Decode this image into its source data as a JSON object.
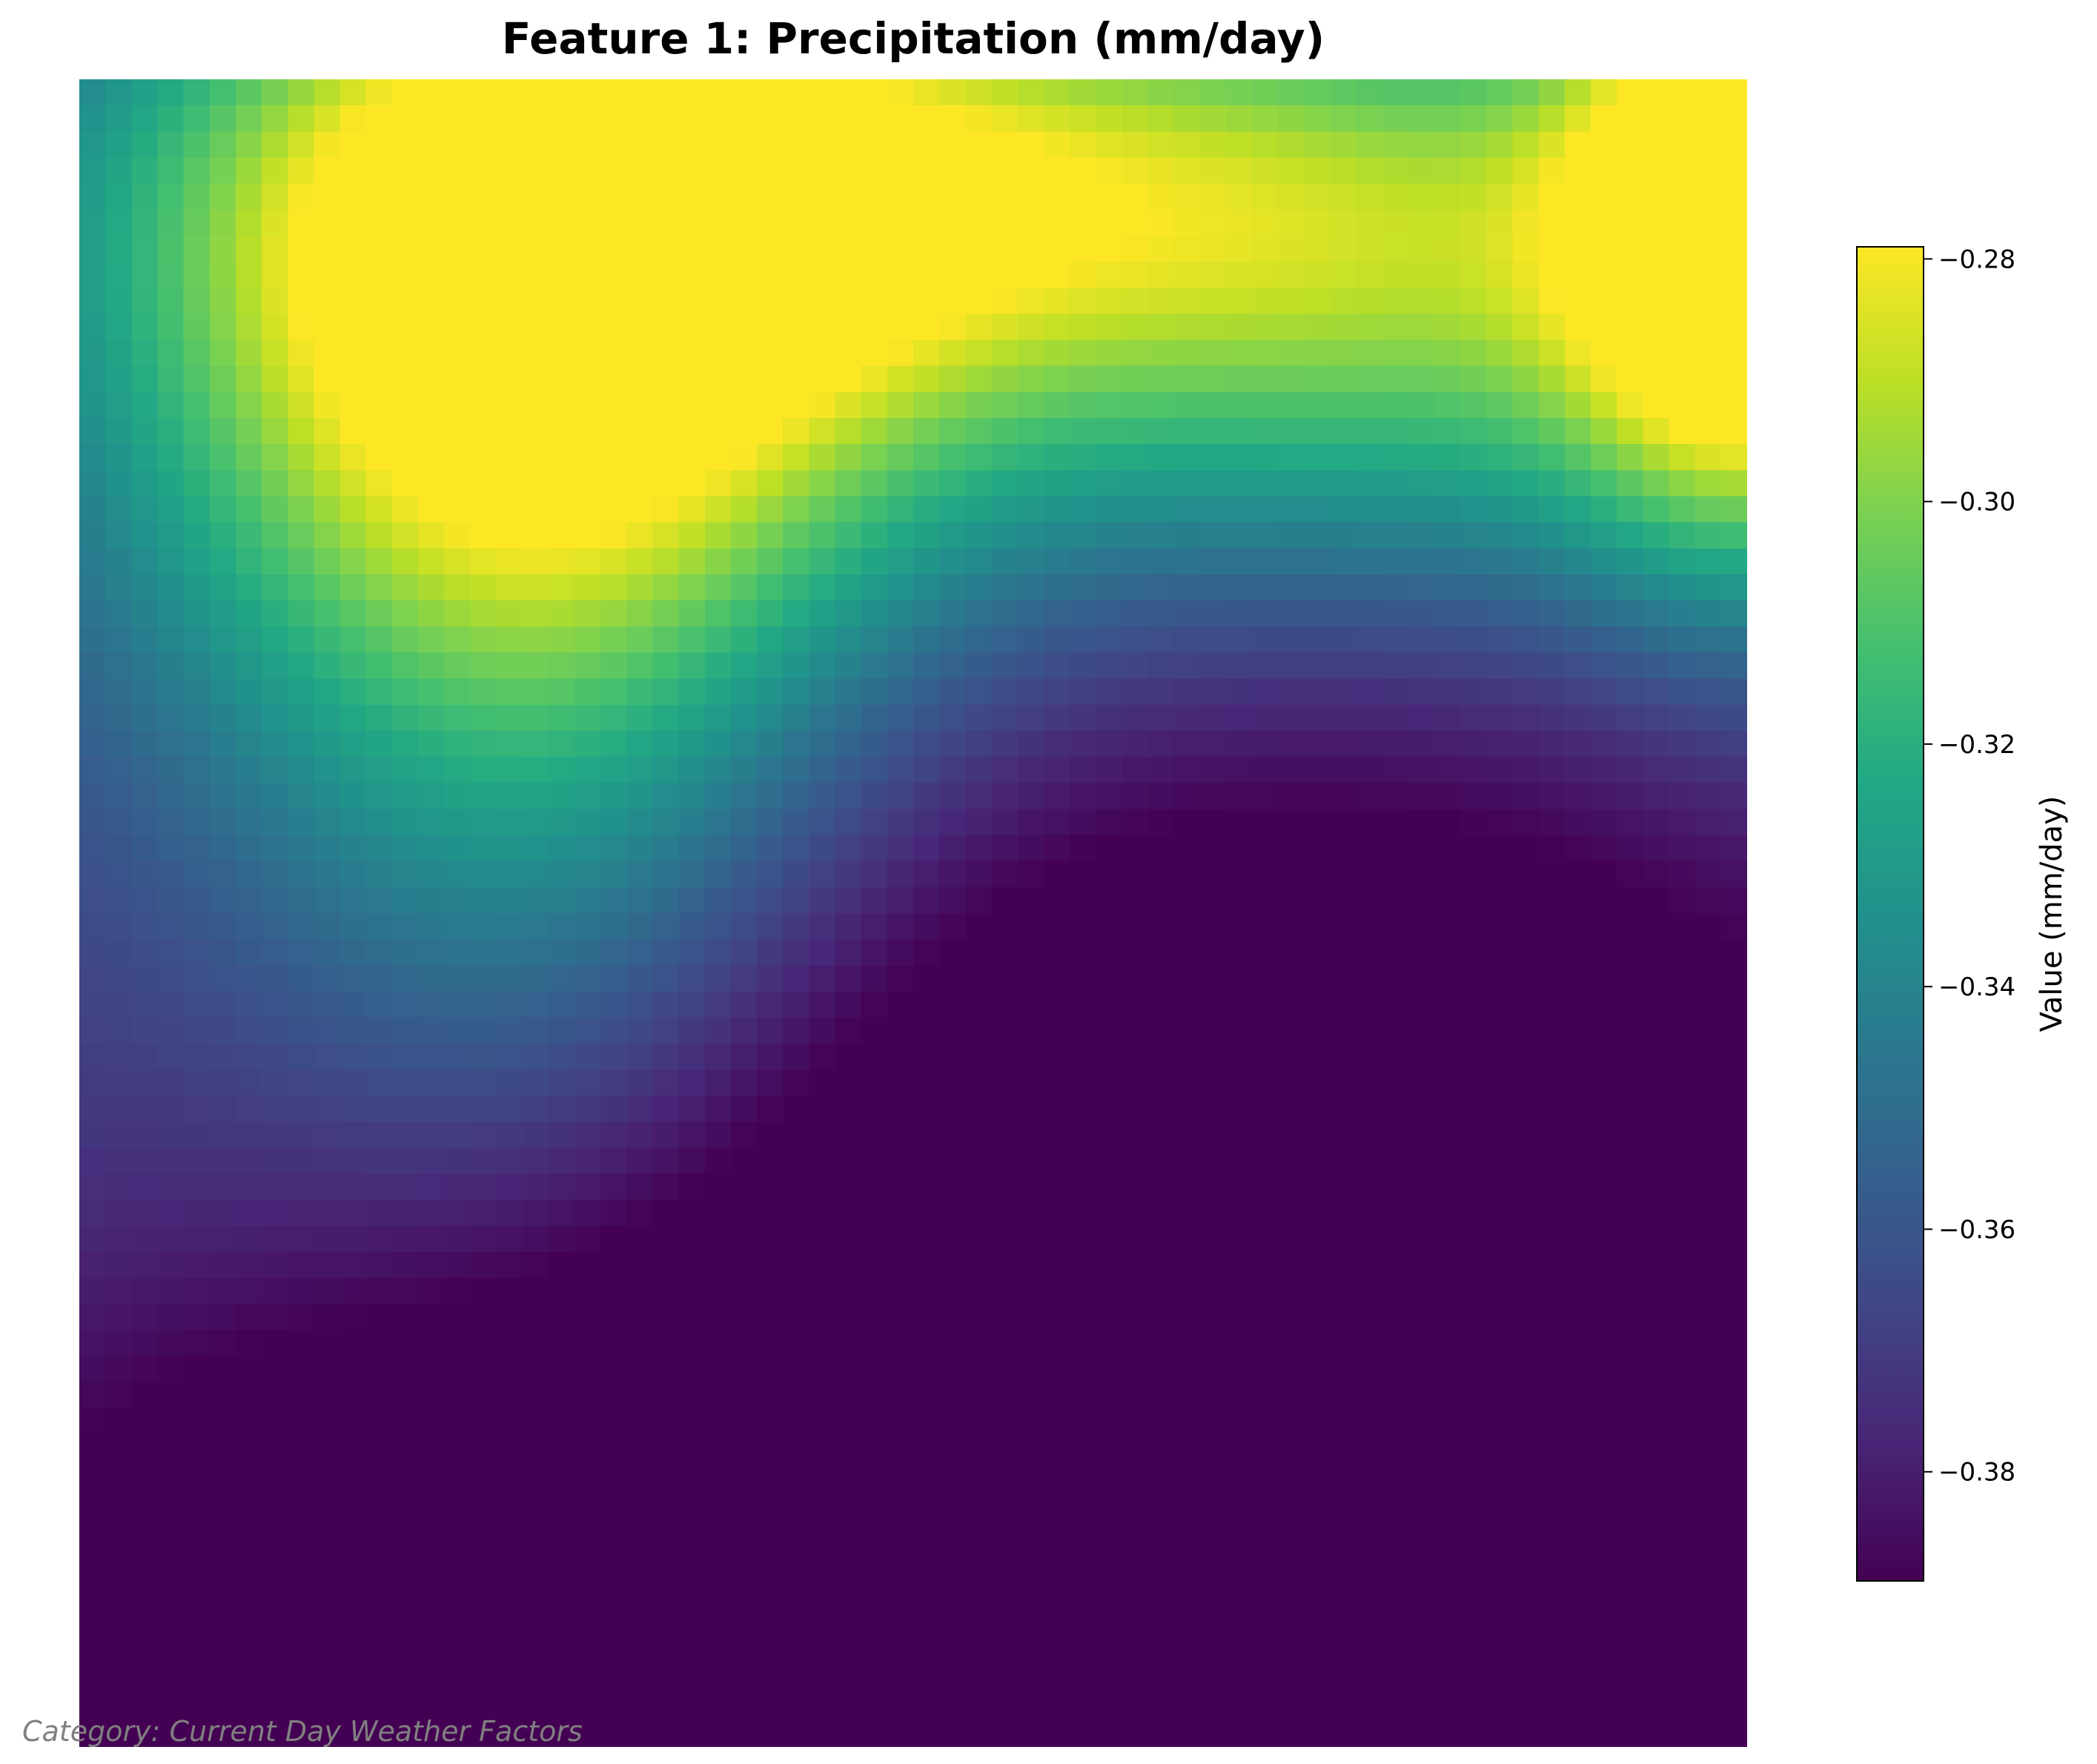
{
  "chart_data": {
    "type": "heatmap",
    "title": "Feature 1: Precipitation (mm/day)",
    "colormap": "viridis",
    "colorbar": {
      "label": "Value (mm/day)",
      "range": [
        -0.389,
        -0.279
      ],
      "ticks": [
        -0.28,
        -0.3,
        -0.32,
        -0.34,
        -0.36,
        -0.38
      ],
      "tick_labels": [
        "−0.28",
        "−0.30",
        "−0.32",
        "−0.34",
        "−0.36",
        "−0.38"
      ]
    },
    "grid": {
      "rows": 64,
      "cols": 64
    },
    "axes_visible": false,
    "peaks": [
      {
        "row": 9,
        "col": 17,
        "value": -0.279
      },
      {
        "row": 6,
        "col": 63,
        "value": -0.285
      }
    ],
    "min_value": -0.389,
    "caption": "Category: Current Day Weather Factors"
  }
}
